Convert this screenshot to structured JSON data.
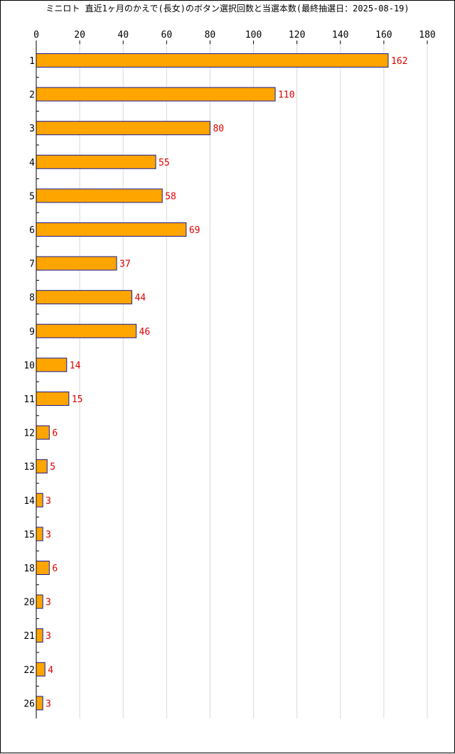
{
  "chart_data": {
    "type": "bar",
    "orientation": "horizontal",
    "title": "ミニロト 直近1ヶ月のかえで(長女)のボタン選択回数と当選本数(最終抽選日：2025-08-19)",
    "categories": [
      "1",
      "2",
      "3",
      "4",
      "5",
      "6",
      "7",
      "8",
      "9",
      "10",
      "11",
      "12",
      "13",
      "14",
      "15",
      "18",
      "20",
      "21",
      "22",
      "26"
    ],
    "values": [
      162,
      110,
      80,
      55,
      58,
      69,
      37,
      44,
      46,
      14,
      15,
      6,
      5,
      3,
      3,
      6,
      3,
      3,
      4,
      3
    ],
    "xlim": [
      0,
      180
    ],
    "x_ticks": [
      0,
      20,
      40,
      60,
      80,
      100,
      120,
      140,
      160,
      180
    ],
    "x_axis_position": "top",
    "grid": true,
    "data_labels": true,
    "colors": {
      "bar_fill": "#ffa500",
      "bar_stroke": "#1a1a8c",
      "label": "#e00000",
      "grid": "#d9d9d9"
    }
  }
}
